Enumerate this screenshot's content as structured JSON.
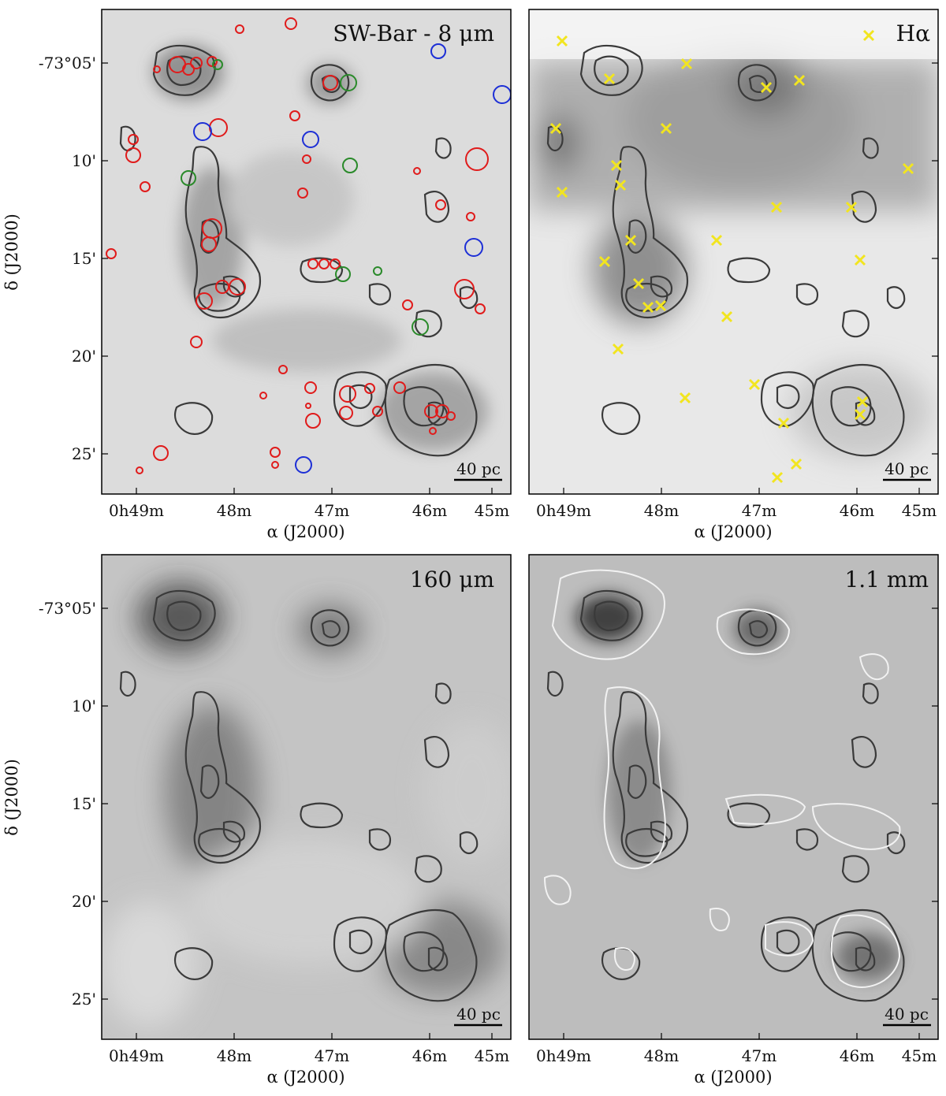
{
  "figure": {
    "panels": [
      {
        "id": "sw-bar-8um",
        "title": "SW-Bar - 8 μm",
        "scalebar": "40 pc",
        "background": "#dcdcdc",
        "markers": {
          "red_circles": [
            [
              -6,
              3
            ],
            [
              1,
              4
            ],
            [
              2,
              3
            ],
            [
              -3,
              1
            ],
            [
              4,
              7
            ],
            [
              3,
              8
            ],
            [
              -5,
              7
            ],
            [
              8,
              5
            ],
            [
              -2,
              4
            ],
            [
              5,
              5
            ],
            [
              6,
              8
            ],
            [
              7,
              6
            ],
            [
              -1,
              3
            ],
            [
              9,
              6
            ],
            [
              3,
              6
            ]
          ],
          "green_circles": [
            [
              3,
              8
            ],
            [
              5,
              6
            ],
            [
              8,
              4
            ],
            [
              2,
              7
            ],
            [
              7,
              6
            ]
          ],
          "blue_circles": [
            [
              1,
              5
            ],
            [
              5,
              3
            ],
            [
              8,
              8
            ],
            [
              6,
              5
            ],
            [
              2,
              6
            ]
          ]
        },
        "x_ticks": [
          "0h49m",
          "48m",
          "47m",
          "46m",
          "45m"
        ],
        "y_ticks": [
          "-73°05'",
          "10'",
          "15'",
          "20'",
          "25'"
        ]
      },
      {
        "id": "halpha",
        "title": "Hα",
        "scalebar": "40 pc",
        "background": "#e8e8e8",
        "x_ticks": [
          "0h49m",
          "48m",
          "47m",
          "46m",
          "45m"
        ]
      },
      {
        "id": "160um",
        "title": "160 μm",
        "scalebar": "40 pc",
        "background": "#c4c4c4",
        "x_ticks": [
          "0h49m",
          "48m",
          "47m",
          "46m",
          "45m"
        ],
        "y_ticks": [
          "-73°05'",
          "10'",
          "15'",
          "20'",
          "25'"
        ]
      },
      {
        "id": "1p1mm",
        "title": "1.1 mm",
        "scalebar": "40 pc",
        "background": "#bdbdbd",
        "x_ticks": [
          "0h49m",
          "48m",
          "47m",
          "46m",
          "45m"
        ]
      }
    ],
    "axis_labels": {
      "x": "α (J2000)",
      "y": "δ (J2000)"
    },
    "colors": {
      "contour": "#3a3a3a",
      "red_marker": "#e01b1b",
      "green_marker": "#2a8a2a",
      "blue_marker": "#1d2fd6",
      "yellow_marker": "#f2e51f",
      "white_contour": "#f2f2f2"
    }
  }
}
